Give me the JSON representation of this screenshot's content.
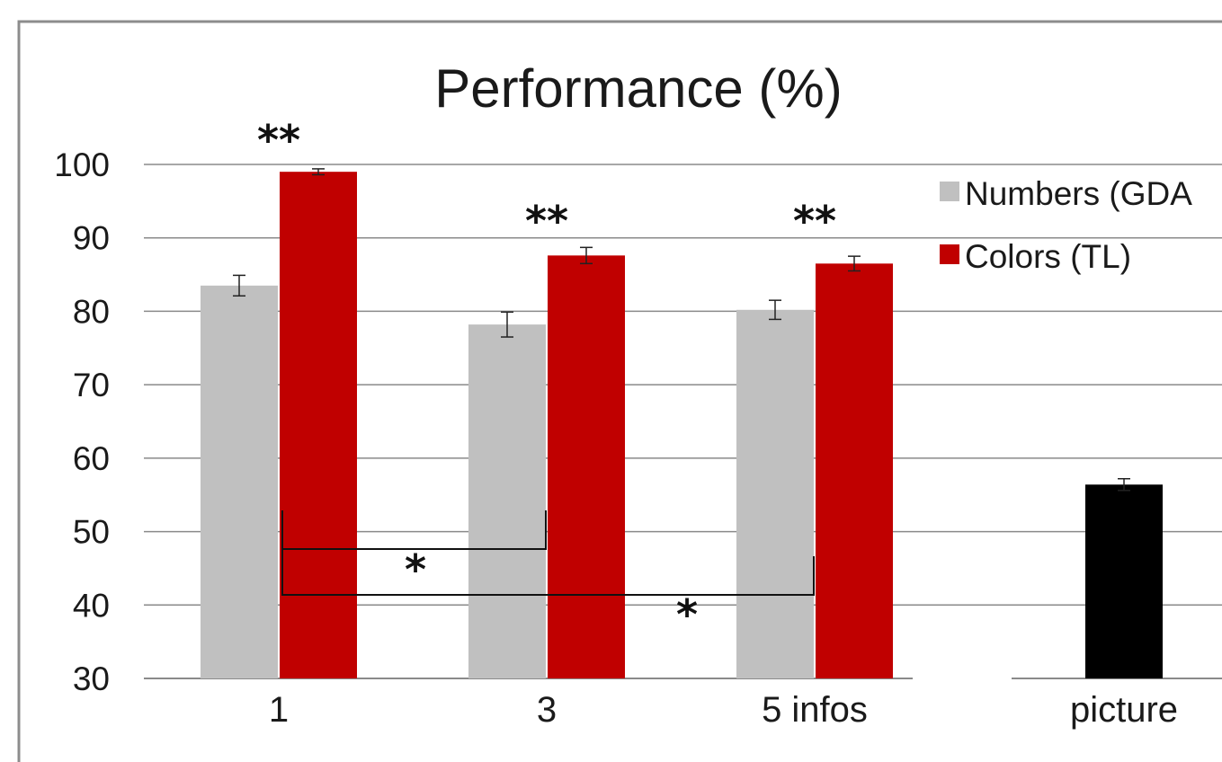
{
  "chart_data": {
    "type": "bar",
    "title": "Performance (%)",
    "xlabel": "",
    "ylabel": "",
    "ylim": [
      30,
      100
    ],
    "yticks": [
      30,
      40,
      50,
      60,
      70,
      80,
      90,
      100
    ],
    "grid": true,
    "legend_position": "top-right",
    "categories": [
      "1",
      "3",
      "5 infos",
      "picture"
    ],
    "series": [
      {
        "name": "Numbers (GDA",
        "color": "#c0c0c0",
        "values": [
          83.5,
          78.2,
          80.2,
          null
        ],
        "errors": [
          1.4,
          1.7,
          1.3,
          null
        ]
      },
      {
        "name": "Colors (TL)",
        "color": "#c00000",
        "values": [
          99.0,
          87.6,
          86.5,
          null
        ],
        "errors": [
          0.4,
          1.1,
          1.0,
          null
        ]
      },
      {
        "name": "",
        "color": "#000000",
        "values": [
          null,
          null,
          null,
          56.4
        ],
        "errors": [
          null,
          null,
          null,
          0.8
        ]
      }
    ],
    "annotations": {
      "pair_stars": [
        "**",
        "**",
        "**"
      ],
      "brackets": [
        {
          "from_category": "1",
          "to_category": "3",
          "label": "*"
        },
        {
          "from_category": "1",
          "to_category": "5 infos",
          "label": "*"
        }
      ]
    }
  }
}
